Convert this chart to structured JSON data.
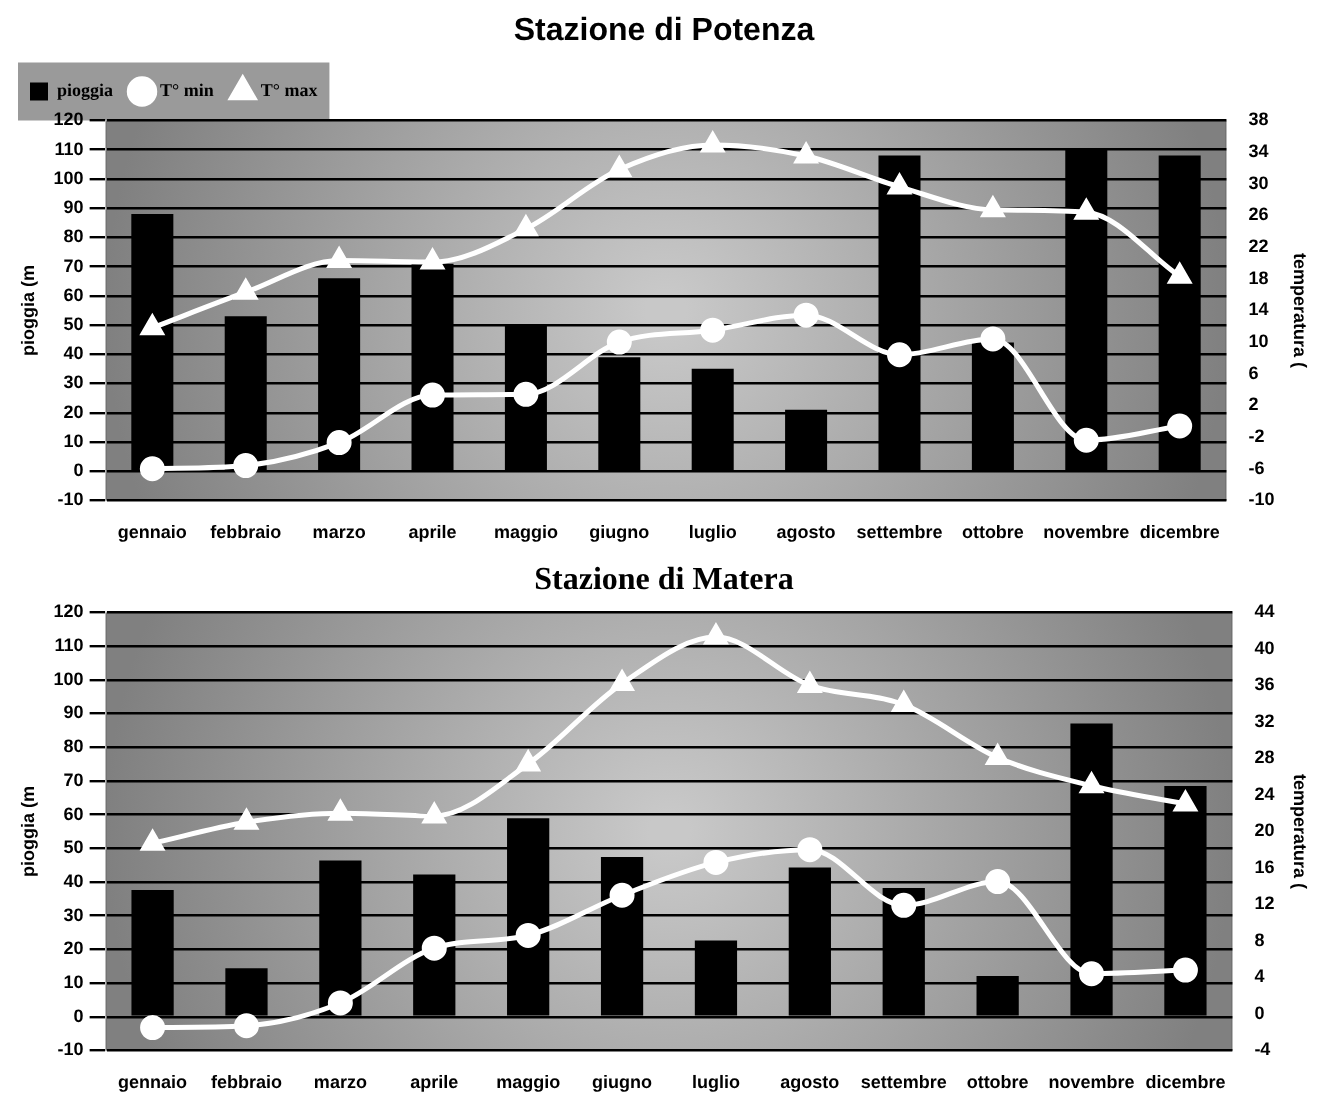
{
  "chart_data": [
    {
      "type": "bar",
      "title": "Stazione di Potenza",
      "ylabel": "pioggia (m",
      "y2label": "temperatura (",
      "categories": [
        "gennaio",
        "febbraio",
        "marzo",
        "aprile",
        "maggio",
        "giugno",
        "luglio",
        "agosto",
        "settembre",
        "ottobre",
        "novembre",
        "dicembre"
      ],
      "series": [
        {
          "name": "pioggia",
          "color": "#000000",
          "values": [
            88,
            53,
            66,
            71,
            50,
            39,
            35,
            21,
            108,
            44,
            110,
            108
          ]
        },
        {
          "name": "T° min",
          "type": "line",
          "axis": "y2",
          "marker": "circle",
          "color": "#ffffff",
          "values": [
            -6,
            -5.6,
            -2.7,
            3.3,
            3.4,
            10,
            11.5,
            13.4,
            8.4,
            10.4,
            -2.4,
            -0.6
          ]
        },
        {
          "name": "T° max",
          "type": "line",
          "axis": "y2",
          "marker": "triangle",
          "color": "#ffffff",
          "values": [
            11.8,
            16.3,
            20.3,
            20.1,
            24.3,
            31.8,
            34.9,
            33.5,
            29.6,
            26.7,
            26.4,
            18.3
          ]
        }
      ],
      "ylim": [
        -10,
        120
      ],
      "yticks": [
        -10,
        0,
        10,
        20,
        30,
        40,
        50,
        60,
        70,
        80,
        90,
        100,
        110,
        120
      ],
      "y2lim": [
        -10,
        38
      ],
      "y2ticks": [
        -10,
        -6,
        -2,
        2,
        6,
        10,
        14,
        18,
        22,
        26,
        30,
        34,
        38
      ],
      "grid": "y",
      "legend": "top left"
    },
    {
      "type": "bar",
      "title": "Stazione di Matera",
      "ylabel": "pioggia (m",
      "y2label": "temperatura (",
      "categories": [
        "gennaio",
        "febbraio",
        "marzo",
        "aprile",
        "maggio",
        "giugno",
        "luglio",
        "agosto",
        "settembre",
        "ottobre",
        "novembre",
        "dicembre"
      ],
      "series": [
        {
          "color": "#000000",
          "values": [
            37.6,
            14.4,
            46.4,
            42.2,
            58.9,
            47.4,
            22.6,
            44.3,
            38.2,
            12.1,
            87,
            68.5
          ]
        },
        {
          "type": "line",
          "axis": "y2",
          "marker": "circle",
          "color": "#ffffff",
          "values": [
            -1.5,
            -1.3,
            1.2,
            7.2,
            8.6,
            13,
            16.6,
            18,
            11.9,
            14.5,
            4.4,
            4.8
          ]
        },
        {
          "type": "line",
          "axis": "y2",
          "marker": "triangle",
          "color": "#ffffff",
          "values": [
            18.7,
            21,
            22,
            21.7,
            27.4,
            36.2,
            41.3,
            36,
            33.9,
            28.1,
            25,
            23
          ]
        }
      ],
      "ylim": [
        -10,
        120
      ],
      "yticks": [
        -10,
        0,
        10,
        20,
        30,
        40,
        50,
        60,
        70,
        80,
        90,
        100,
        110,
        120
      ],
      "y2lim": [
        -4,
        44
      ],
      "y2ticks": [
        -4,
        0,
        4,
        8,
        12,
        16,
        20,
        24,
        28,
        32,
        36,
        40,
        44
      ],
      "grid": "y",
      "legend": false
    }
  ]
}
